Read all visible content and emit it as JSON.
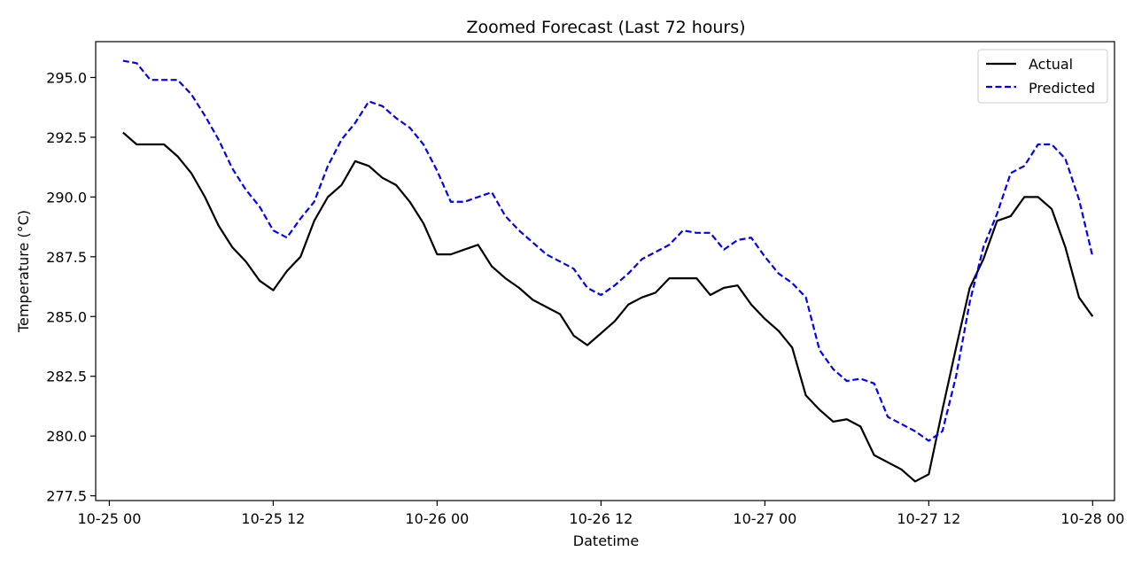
{
  "chart_data": {
    "type": "line",
    "title": "Zoomed Forecast (Last 72 hours)",
    "xlabel": "Datetime",
    "ylabel": "Temperature (°C)",
    "x_start": "2024-10-25 01:00",
    "x_step_hours": 1,
    "xlim": [
      "10-25 00",
      "10-28 00"
    ],
    "x_ticks": [
      "10-25 00",
      "10-25 12",
      "10-26 00",
      "10-26 12",
      "10-27 00",
      "10-27 12",
      "10-28 00"
    ],
    "ylim": [
      277.3,
      296.5
    ],
    "y_ticks": [
      "277.5",
      "280.0",
      "282.5",
      "285.0",
      "287.5",
      "290.0",
      "292.5",
      "295.0"
    ],
    "legend": {
      "placement": "upper-right"
    },
    "grid": false,
    "series": [
      {
        "name": "Actual",
        "color": "#000000",
        "style": "solid",
        "values": [
          292.7,
          292.2,
          292.2,
          292.2,
          291.7,
          291.0,
          290.0,
          288.8,
          287.9,
          287.3,
          286.5,
          286.1,
          286.9,
          287.5,
          289.0,
          290.0,
          290.5,
          291.5,
          291.3,
          290.8,
          290.5,
          289.8,
          288.9,
          287.6,
          287.6,
          287.8,
          288.0,
          287.1,
          286.6,
          286.2,
          285.7,
          285.4,
          285.1,
          284.2,
          283.8,
          284.3,
          284.8,
          285.5,
          285.8,
          286.0,
          286.6,
          286.6,
          286.6,
          285.9,
          286.2,
          286.3,
          285.5,
          284.9,
          284.4,
          283.7,
          281.7,
          281.1,
          280.6,
          280.7,
          280.4,
          279.2,
          278.9,
          278.6,
          278.1,
          278.4,
          281.1,
          283.7,
          286.2,
          287.4,
          289.0,
          289.2,
          290.0,
          290.0,
          289.5,
          287.9,
          285.8,
          285.0
        ]
      },
      {
        "name": "Predicted",
        "color": "#0000ff",
        "style": "dashed",
        "values": [
          295.7,
          295.6,
          294.9,
          294.9,
          294.9,
          294.3,
          293.4,
          292.4,
          291.2,
          290.3,
          289.6,
          288.6,
          288.3,
          289.1,
          289.8,
          291.3,
          292.4,
          293.1,
          294.0,
          293.8,
          293.3,
          292.9,
          292.2,
          291.1,
          289.8,
          289.8,
          290.0,
          290.2,
          289.2,
          288.6,
          288.1,
          287.6,
          287.3,
          287.0,
          286.2,
          285.9,
          286.3,
          286.8,
          287.4,
          287.7,
          288.0,
          288.6,
          288.5,
          288.5,
          287.8,
          288.2,
          288.3,
          287.5,
          286.8,
          286.4,
          285.8,
          283.6,
          282.8,
          282.3,
          282.4,
          282.2,
          280.8,
          280.5,
          280.2,
          279.8,
          280.2,
          282.5,
          285.6,
          287.9,
          289.3,
          291.0,
          291.3,
          292.2,
          292.2,
          291.6,
          289.9,
          287.5
        ]
      }
    ]
  }
}
